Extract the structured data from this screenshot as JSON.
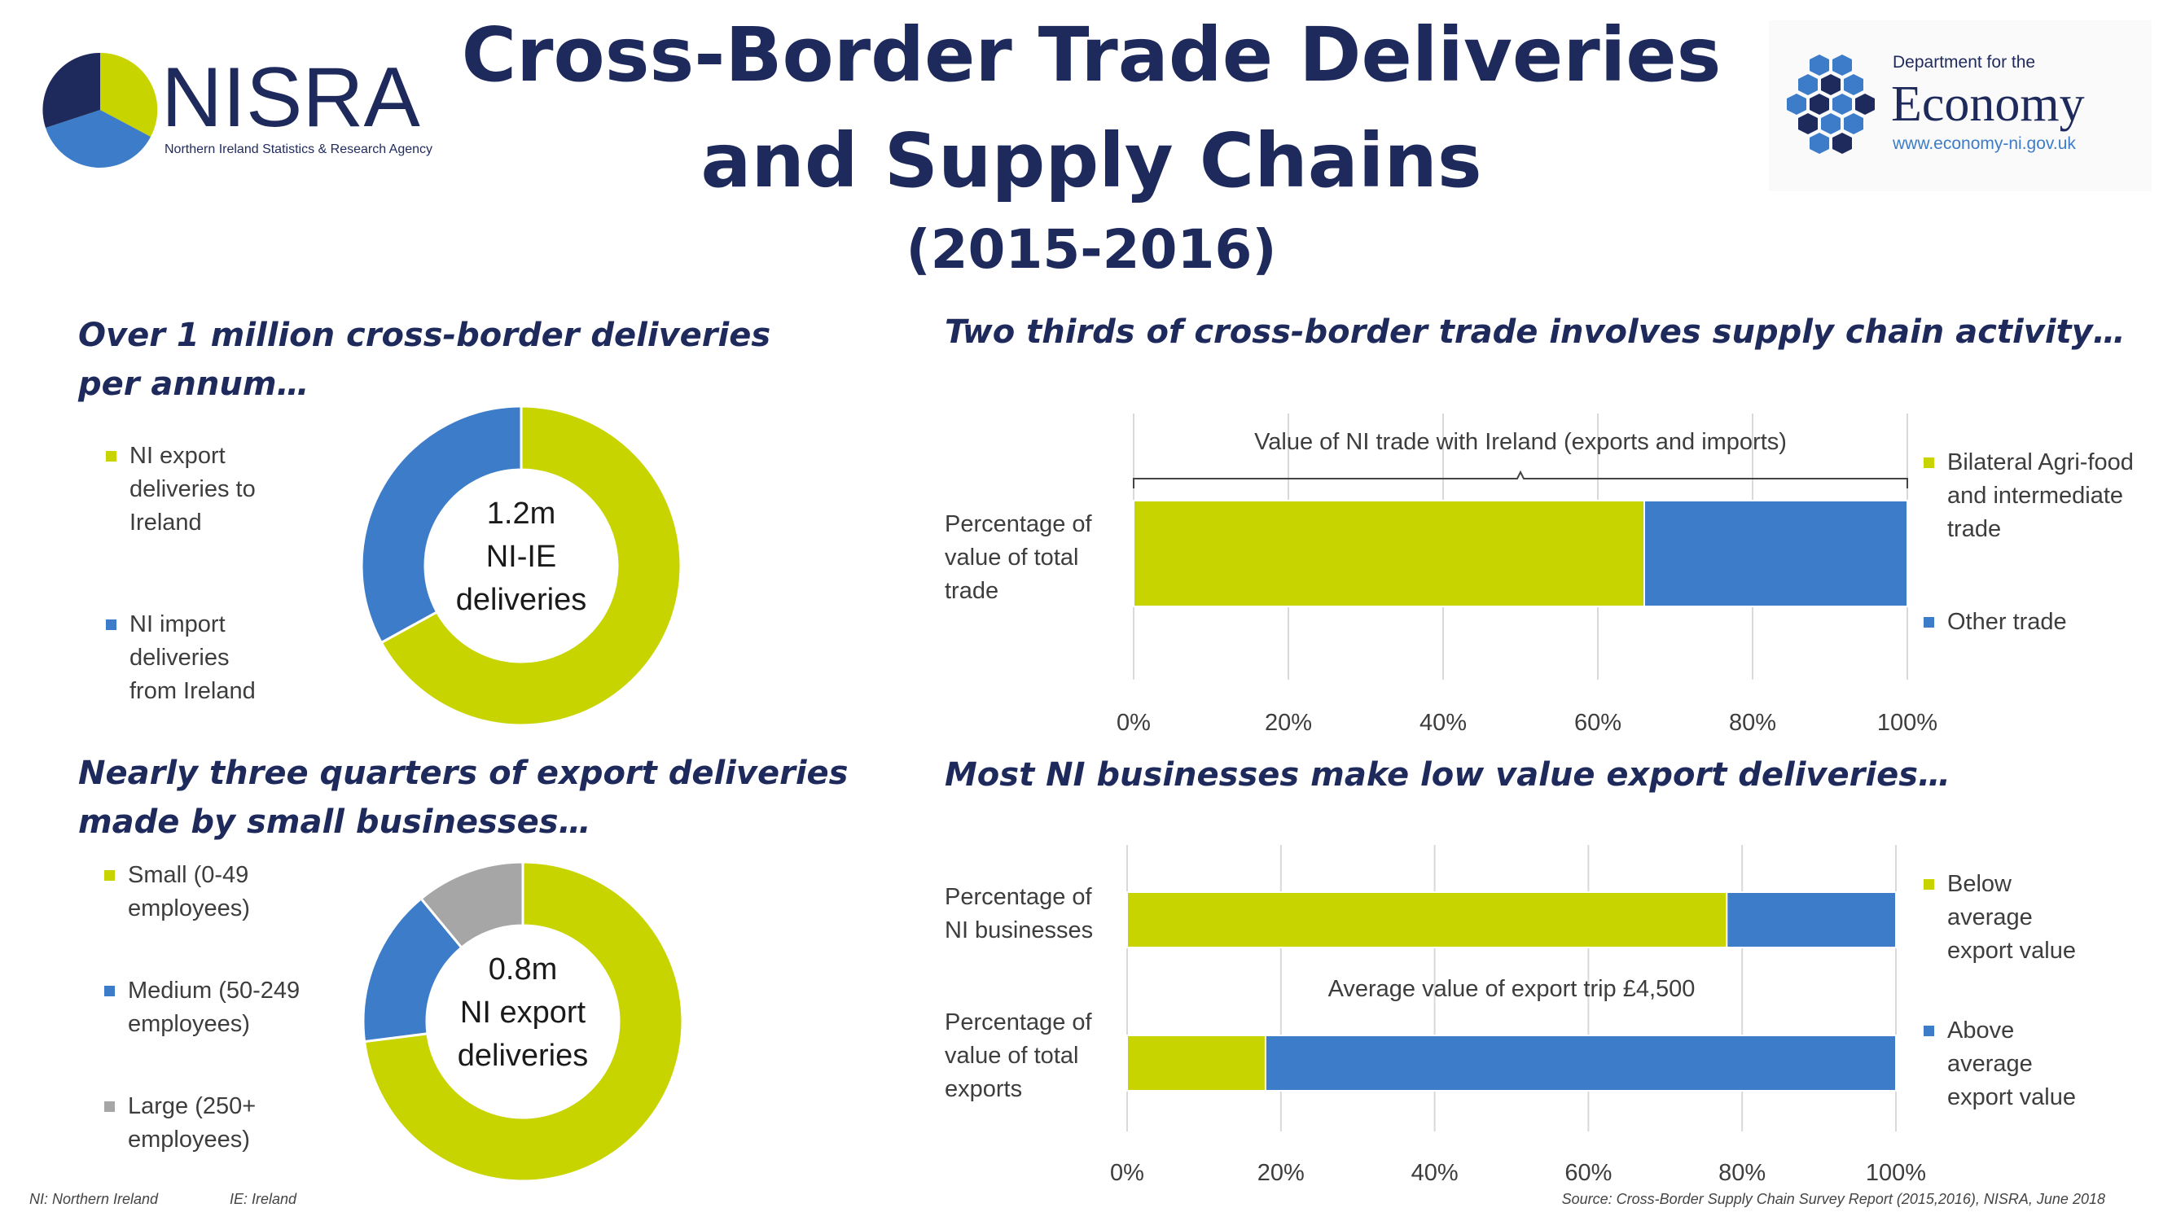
{
  "page": {
    "title_line1": "Cross-Border Trade Deliveries",
    "title_line2": "and Supply Chains",
    "subtitle": "(2015-2016)"
  },
  "logos": {
    "nisra": {
      "name": "NISRA",
      "tagline": "Northern Ireland Statistics & Research Agency"
    },
    "economy": {
      "dept": "Department for the",
      "name": "Economy",
      "url": "www.economy-ni.gov.uk"
    }
  },
  "colors": {
    "green": "#c8d400",
    "blue": "#3d7cc9",
    "grey": "#a6a6a6",
    "navy": "#1f2a5c",
    "grid": "#d9d9d9"
  },
  "chart_data": [
    {
      "type": "pie",
      "heading": "Over 1 million cross-border deliveries per annum…",
      "center_label": [
        "1.2m",
        "NI-IE",
        "deliveries"
      ],
      "categories": [
        "NI export deliveries to Ireland",
        "NI import deliveries from Ireland"
      ],
      "values": [
        67,
        33
      ],
      "colors": [
        "#c8d400",
        "#3d7cc9"
      ],
      "legend": [
        "NI export",
        "deliveries to",
        "Ireland",
        "NI import",
        "deliveries",
        "from Ireland"
      ]
    },
    {
      "type": "bar",
      "orientation": "horizontal-stacked",
      "heading": "Two thirds of cross-border trade involves supply chain activity…",
      "annotation": "Value of NI trade with Ireland (exports and imports)",
      "categories": [
        "Percentage of value of total trade"
      ],
      "category_lines": [
        [
          "Percentage of",
          "value of total",
          "trade"
        ]
      ],
      "series": [
        {
          "name": "Bilateral Agri-food and intermediate trade",
          "values": [
            66
          ]
        },
        {
          "name": "Other trade",
          "values": [
            34
          ]
        }
      ],
      "legend_lines": [
        [
          "Bilateral Agri-food",
          "and intermediate",
          "trade"
        ],
        [
          "Other trade"
        ]
      ],
      "xlim": [
        0,
        100
      ],
      "xticks": [
        "0%",
        "20%",
        "40%",
        "60%",
        "80%",
        "100%"
      ],
      "grid": true,
      "legend_position": "right"
    },
    {
      "type": "pie",
      "heading": "Nearly three quarters of export deliveries made by small businesses…",
      "center_label": [
        "0.8m",
        "NI export",
        "deliveries"
      ],
      "categories": [
        "Small (0-49 employees)",
        "Medium (50-249 employees)",
        "Large (250+ employees)"
      ],
      "values": [
        73,
        16,
        11
      ],
      "colors": [
        "#c8d400",
        "#3d7cc9",
        "#a6a6a6"
      ],
      "legend": [
        "Small (0-49",
        "employees)",
        "Medium (50-249",
        "employees)",
        "Large (250+",
        "employees)"
      ]
    },
    {
      "type": "bar",
      "orientation": "horizontal-stacked",
      "heading": "Most NI businesses make low value export deliveries…",
      "annotation": "Average value of export trip £4,500",
      "categories": [
        "Percentage of NI businesses",
        "Percentage of value of total exports"
      ],
      "category_lines": [
        [
          "Percentage of",
          "NI businesses"
        ],
        [
          "Percentage of",
          "value of total",
          "exports"
        ]
      ],
      "series": [
        {
          "name": "Below average export value",
          "values": [
            78,
            18
          ]
        },
        {
          "name": "Above average export value",
          "values": [
            22,
            82
          ]
        }
      ],
      "legend_lines": [
        [
          "Below",
          "average",
          "export value"
        ],
        [
          "Above",
          "average",
          "export value"
        ]
      ],
      "xlim": [
        0,
        100
      ],
      "xticks": [
        "0%",
        "20%",
        "40%",
        "60%",
        "80%",
        "100%"
      ],
      "grid": true,
      "legend_position": "right"
    }
  ],
  "footer": {
    "note_ni": "NI: Northern Ireland",
    "note_ie": "IE: Ireland",
    "source": "Source: Cross-Border Supply Chain Survey Report (2015,2016), NISRA, June 2018"
  }
}
